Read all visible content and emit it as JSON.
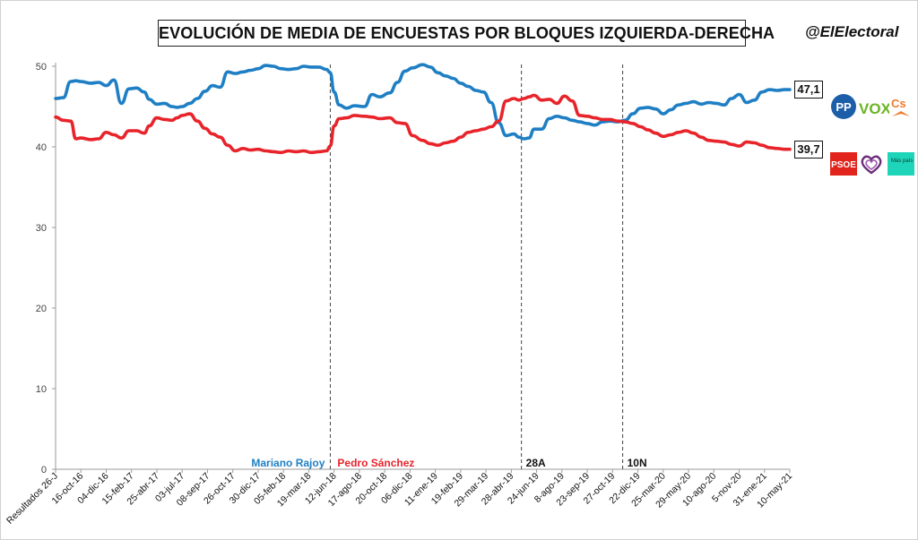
{
  "brand": "@ElElectoral",
  "chart_data": {
    "type": "line",
    "title": "EVOLUCIÓN DE MEDIA DE ENCUESTAS POR BLOQUES IZQUIERDA-DERECHA",
    "xlabel": "",
    "ylabel": "",
    "ylim": [
      0,
      50
    ],
    "yticks": [
      0,
      10,
      20,
      30,
      40,
      50
    ],
    "grid": false,
    "x_ticks": [
      "Resultados 26-J",
      "16-oct-16",
      "04-dic-16",
      "15-feb-17",
      "25-abr-17",
      "03-jul-17",
      "08-sep-17",
      "26-oct-17",
      "30-dic-17",
      "05-feb-18",
      "19-mar-18",
      "12-jun-18",
      "17-ago-18",
      "20-oct-18",
      "06-dic-18",
      "11-ene-19",
      "19-feb-19",
      "29-mar-19",
      "28-abr-19",
      "24-jun-19",
      "8-ago-19",
      "23-sep-19",
      "27-oct-19",
      "22-dic-19",
      "25-mar-20",
      "29-may-20",
      "10-ago-20",
      "5-nov-20",
      "31-ene-21",
      "10-may-21"
    ],
    "events": [
      {
        "label": "",
        "x_index": 10.85
      },
      {
        "label": "28A",
        "x_index": 18.4
      },
      {
        "label": "10N",
        "x_index": 22.4
      }
    ],
    "period_labels": [
      {
        "label": "Mariano Rajoy",
        "color": "#1f7fc4"
      },
      {
        "label": "Pedro Sánchez",
        "color": "#e8242b"
      }
    ],
    "series": [
      {
        "color": "#1f7fc4",
        "end_label": "47,1",
        "x": [
          0,
          0.3,
          0.6,
          0.8,
          1.0,
          1.4,
          1.7,
          2.0,
          2.3,
          2.6,
          2.9,
          3.2,
          3.5,
          3.7,
          4.0,
          4.3,
          4.6,
          4.8,
          5.0,
          5.3,
          5.6,
          5.9,
          6.2,
          6.5,
          6.8,
          7.1,
          7.4,
          7.7,
          8.0,
          8.3,
          8.6,
          8.9,
          9.2,
          9.5,
          9.8,
          10.1,
          10.4,
          10.7,
          10.85,
          11.0,
          11.2,
          11.5,
          11.8,
          12.2,
          12.5,
          12.8,
          13.2,
          13.5,
          13.8,
          14.1,
          14.5,
          14.8,
          15.1,
          15.4,
          15.7,
          16.0,
          16.3,
          16.6,
          16.9,
          17.2,
          17.5,
          17.8,
          18.1,
          18.3,
          18.5,
          18.7,
          18.9,
          19.2,
          19.5,
          19.8,
          20.1,
          20.4,
          20.7,
          21.0,
          21.3,
          21.6,
          21.9,
          22.2,
          22.5,
          22.8,
          23.1,
          23.4,
          23.7,
          24.0,
          24.3,
          24.6,
          24.9,
          25.2,
          25.5,
          25.8,
          26.1,
          26.4,
          26.7,
          27.0,
          27.3,
          27.6,
          27.9,
          28.2,
          28.5,
          28.8,
          29.0
        ],
        "values": [
          46.0,
          46.1,
          48.1,
          48.2,
          48.1,
          47.9,
          48.0,
          47.6,
          48.3,
          45.4,
          47.2,
          47.3,
          46.8,
          45.9,
          45.3,
          45.4,
          45.0,
          44.9,
          45.0,
          45.4,
          46.0,
          46.9,
          47.6,
          47.4,
          49.3,
          49.1,
          49.3,
          49.5,
          49.7,
          50.1,
          50.0,
          49.7,
          49.6,
          49.7,
          50.0,
          49.9,
          49.9,
          49.6,
          49.2,
          46.8,
          45.2,
          44.8,
          45.1,
          45.0,
          46.5,
          46.2,
          46.7,
          48.0,
          49.4,
          49.8,
          50.2,
          49.9,
          49.2,
          48.8,
          48.5,
          47.9,
          47.5,
          47.0,
          46.8,
          45.5,
          43.0,
          41.4,
          41.6,
          41.2,
          41.0,
          41.1,
          42.2,
          42.2,
          43.5,
          43.8,
          43.6,
          43.3,
          43.1,
          42.9,
          42.7,
          43.1,
          43.2,
          43.1,
          43.3,
          44.1,
          44.8,
          44.9,
          44.7,
          44.1,
          44.6,
          45.2,
          45.4,
          45.6,
          45.3,
          45.5,
          45.4,
          45.2,
          46.0,
          46.5,
          45.5,
          45.8,
          46.8,
          47.1,
          47.0,
          47.1,
          47.1
        ]
      },
      {
        "color": "#e8242b",
        "end_label": "39,7",
        "x": [
          0,
          0.3,
          0.6,
          0.8,
          1.0,
          1.4,
          1.7,
          2.0,
          2.3,
          2.6,
          2.9,
          3.2,
          3.5,
          3.7,
          4.0,
          4.3,
          4.6,
          4.8,
          5.0,
          5.3,
          5.6,
          5.9,
          6.2,
          6.5,
          6.8,
          7.1,
          7.4,
          7.7,
          8.0,
          8.3,
          8.6,
          8.9,
          9.2,
          9.5,
          9.8,
          10.1,
          10.4,
          10.7,
          10.85,
          11.0,
          11.2,
          11.5,
          11.8,
          12.2,
          12.5,
          12.8,
          13.2,
          13.5,
          13.8,
          14.1,
          14.5,
          14.8,
          15.1,
          15.4,
          15.7,
          16.0,
          16.3,
          16.6,
          16.9,
          17.2,
          17.5,
          17.8,
          18.1,
          18.3,
          18.5,
          18.7,
          18.9,
          19.2,
          19.5,
          19.8,
          20.1,
          20.4,
          20.7,
          21.0,
          21.3,
          21.6,
          21.9,
          22.2,
          22.5,
          22.8,
          23.1,
          23.4,
          23.7,
          24.0,
          24.3,
          24.6,
          24.9,
          25.2,
          25.5,
          25.8,
          26.1,
          26.4,
          26.7,
          27.0,
          27.3,
          27.6,
          27.9,
          28.2,
          28.5,
          28.8,
          29.0
        ],
        "values": [
          43.7,
          43.3,
          43.2,
          41.0,
          41.1,
          40.9,
          41.0,
          41.8,
          41.5,
          41.1,
          42.0,
          42.0,
          41.7,
          42.6,
          43.6,
          43.4,
          43.3,
          43.6,
          43.9,
          44.1,
          43.2,
          42.3,
          41.6,
          41.2,
          40.2,
          39.5,
          39.8,
          39.6,
          39.7,
          39.5,
          39.4,
          39.3,
          39.5,
          39.4,
          39.5,
          39.3,
          39.4,
          39.5,
          40.1,
          42.6,
          43.5,
          43.6,
          43.9,
          43.8,
          43.7,
          43.5,
          43.6,
          43.0,
          42.9,
          41.4,
          40.8,
          40.4,
          40.2,
          40.5,
          40.7,
          41.2,
          41.8,
          42.0,
          42.2,
          42.5,
          43.2,
          45.7,
          46.0,
          45.8,
          46.0,
          46.2,
          46.4,
          45.8,
          45.9,
          45.4,
          46.3,
          45.7,
          43.9,
          43.8,
          43.6,
          43.4,
          43.4,
          43.2,
          43.1,
          42.9,
          42.5,
          42.1,
          41.7,
          41.3,
          41.5,
          41.8,
          42.0,
          41.7,
          41.2,
          40.8,
          40.7,
          40.6,
          40.3,
          40.1,
          40.6,
          40.5,
          40.2,
          39.9,
          39.8,
          39.7,
          39.7
        ]
      }
    ]
  },
  "legend": {
    "right_logos": [
      "pp-logo",
      "vox-logo",
      "cs-logo"
    ],
    "left_logos": [
      "psoe-logo",
      "podemos-logo",
      "mas-pais-logo"
    ]
  },
  "logos": {
    "pp": "PP",
    "vox": "VOX",
    "cs": "Cs",
    "psoe": "PSOE",
    "mas_pais": "Más país"
  }
}
